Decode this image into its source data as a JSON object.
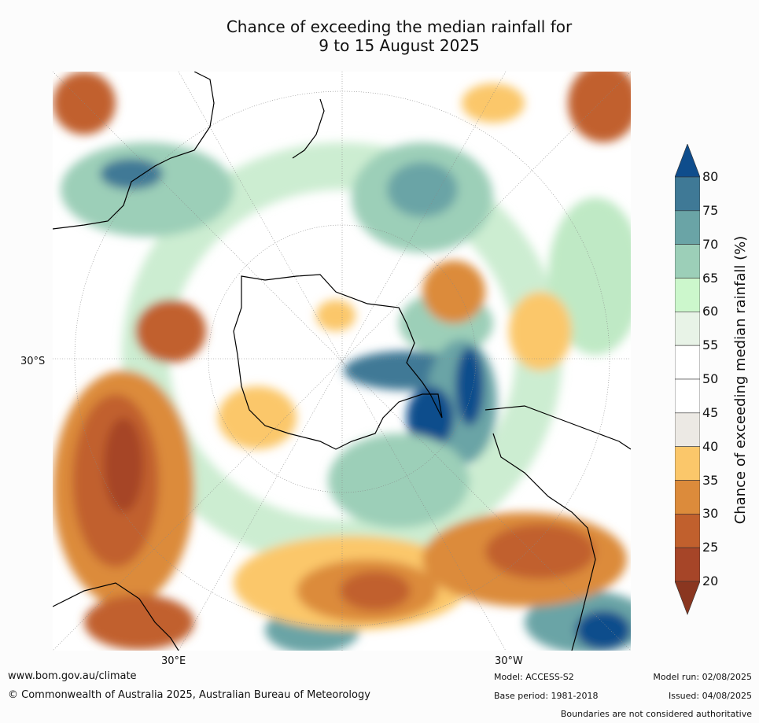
{
  "title_line1": "Chance of exceeding the median rainfall for",
  "title_line2": "9 to 15 August 2025",
  "map": {
    "lon_labels": [
      "30°E",
      "30°W"
    ],
    "lat_labels": [
      "30°S"
    ]
  },
  "colorbar": {
    "label": "Chance of exceeding median rainfall (%)",
    "ticks": [
      "80",
      "75",
      "70",
      "65",
      "60",
      "55",
      "50",
      "45",
      "40",
      "35",
      "30",
      "25",
      "20"
    ],
    "colors": [
      "#0f4d8c",
      "#3f7996",
      "#6aa4a6",
      "#9ccfb8",
      "#ccf7cc",
      "#e8f3e7",
      "#ffffff",
      "#ffffff",
      "#ece9e4",
      "#fbc76a",
      "#dc8b3b",
      "#c1602d",
      "#a64528",
      "#8a3620"
    ]
  },
  "footer": {
    "website": "www.bom.gov.au/climate",
    "copyright": "© Commonwealth of Australia 2025, Australian Bureau of Meteorology",
    "model": "Model: ACCESS-S2",
    "base_period": "Base period: 1981-2018",
    "model_run": "Model run: 02/08/2025",
    "issued": "Issued: 04/08/2025",
    "disclaimer": "Boundaries are not considered authoritative"
  }
}
